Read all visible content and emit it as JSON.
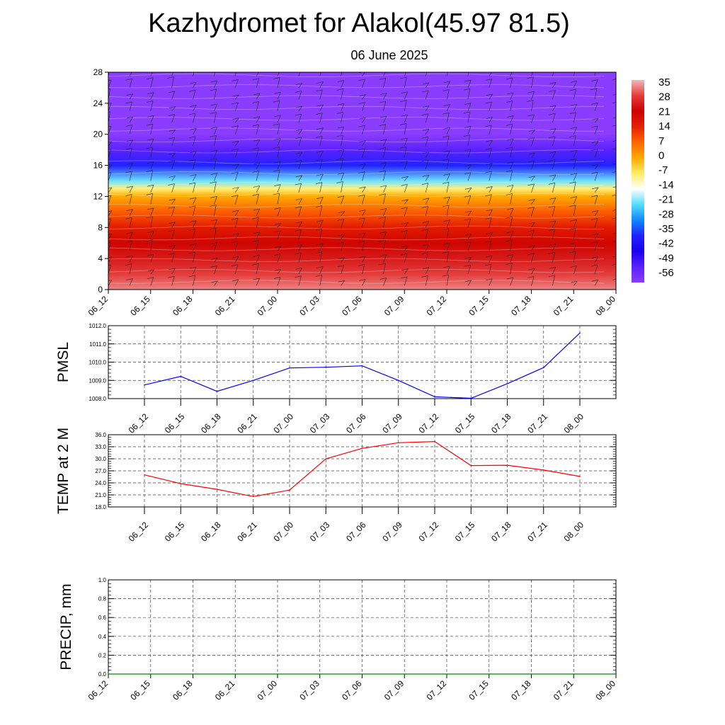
{
  "header": {
    "title": "Kazhydromet for Alakol(45.97 81.5)",
    "subtitle": "06 June 2025"
  },
  "time_labels": [
    "06_12",
    "06_15",
    "06_18",
    "06_21",
    "07_00",
    "07_03",
    "07_06",
    "07_09",
    "07_12",
    "07_15",
    "07_18",
    "07_21",
    "08_00"
  ],
  "chart_data": [
    {
      "type": "heatmap",
      "title": "",
      "x": [
        "06_12",
        "06_15",
        "06_18",
        "06_21",
        "07_00",
        "07_03",
        "07_06",
        "07_09",
        "07_12",
        "07_15",
        "07_18",
        "07_21",
        "08_00"
      ],
      "ylim": [
        0,
        28
      ],
      "yticks": [
        0,
        4,
        8,
        12,
        16,
        20,
        24,
        28
      ],
      "colorbar": {
        "labels": [
          "35",
          "28",
          "21",
          "14",
          "7",
          "0",
          "-7",
          "-14",
          "-21",
          "-28",
          "-35",
          "-42",
          "-49",
          "-56"
        ],
        "colors": [
          "#f2b8b8",
          "#e43c3c",
          "#cc0000",
          "#e62000",
          "#ff6600",
          "#ffaa00",
          "#ffee66",
          "#ffffff",
          "#55ddff",
          "#1188ff",
          "#2222ff",
          "#1a00ee",
          "#5a22ff",
          "#8a3cff"
        ]
      },
      "levels": [
        {
          "height": 0,
          "value": 32
        },
        {
          "height": 2,
          "value": 28
        },
        {
          "height": 4,
          "value": 24
        },
        {
          "height": 6,
          "value": 20
        },
        {
          "height": 8,
          "value": 15
        },
        {
          "height": 10,
          "value": 8
        },
        {
          "height": 12,
          "value": 0
        },
        {
          "height": 13,
          "value": -8
        },
        {
          "height": 14,
          "value": -20
        },
        {
          "height": 16,
          "value": -35
        },
        {
          "height": 18,
          "value": -49
        },
        {
          "height": 20,
          "value": -56
        },
        {
          "height": 22,
          "value": -58
        },
        {
          "height": 24,
          "value": -56
        },
        {
          "height": 26,
          "value": -57
        },
        {
          "height": 28,
          "value": -58
        }
      ]
    },
    {
      "type": "line",
      "ylabel": "PMSL",
      "x": [
        "06_12",
        "06_15",
        "06_18",
        "06_21",
        "07_00",
        "07_03",
        "07_06",
        "07_09",
        "07_12",
        "07_15",
        "07_18",
        "07_21",
        "08_00"
      ],
      "ylim": [
        1008.0,
        1012.0
      ],
      "yticks": [
        "1008.0",
        "1009.0",
        "1010.0",
        "1011.0",
        "1012.0"
      ],
      "grid": true,
      "color": "#0000ff",
      "values": [
        1008.75,
        1009.22,
        1008.4,
        1009.0,
        1009.68,
        1009.72,
        1009.8,
        1009.0,
        1008.1,
        1008.02,
        1008.82,
        1009.7,
        1011.6
      ]
    },
    {
      "type": "line",
      "ylabel": "TEMP at 2 M",
      "x": [
        "06_12",
        "06_15",
        "06_18",
        "06_21",
        "07_00",
        "07_03",
        "07_06",
        "07_09",
        "07_12",
        "07_15",
        "07_18",
        "07_21",
        "08_00"
      ],
      "ylim": [
        18.0,
        36.0
      ],
      "yticks": [
        "18.0",
        "21.0",
        "24.0",
        "27.0",
        "30.0",
        "33.0",
        "36.0"
      ],
      "grid": true,
      "color": "#ff0000",
      "values": [
        26.0,
        23.8,
        22.4,
        20.6,
        22.2,
        30.0,
        32.6,
        34.0,
        34.3,
        28.3,
        28.4,
        27.2,
        25.6
      ]
    },
    {
      "type": "line",
      "ylabel": "PRECIP, mm",
      "x": [
        "06_12",
        "06_15",
        "06_18",
        "06_21",
        "07_00",
        "07_03",
        "07_06",
        "07_09",
        "07_12",
        "07_15",
        "07_18",
        "07_21",
        "08_00"
      ],
      "ylim": [
        0.0,
        1.0
      ],
      "yticks": [
        "0.0",
        "0.2",
        "0.4",
        "0.6",
        "0.8",
        "1.0"
      ],
      "grid": true,
      "color": "#008800",
      "values": [
        0,
        0,
        0,
        0,
        0,
        0,
        0,
        0,
        0,
        0,
        0,
        0,
        0
      ]
    }
  ]
}
